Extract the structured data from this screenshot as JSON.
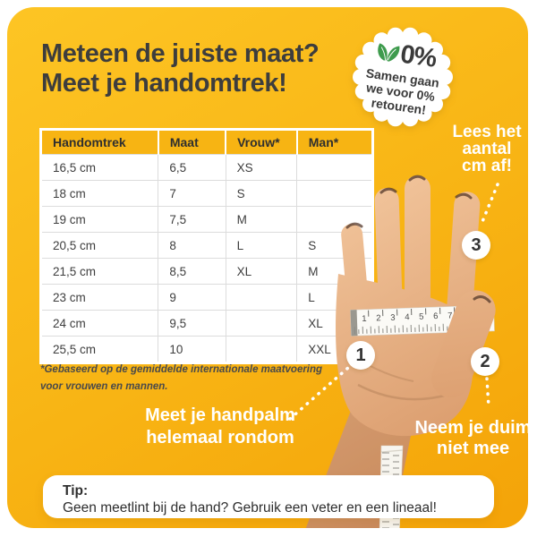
{
  "title": {
    "lines": [
      "Meteen de juiste maat?",
      "Meet je handomtrek!"
    ]
  },
  "badge": {
    "percent": "0%",
    "lines": [
      "Samen gaan",
      "we voor 0%",
      "retouren!"
    ],
    "leaf_icon": "sprout-leaves",
    "leaf_color": "#3E9B4D"
  },
  "table": {
    "headers": [
      "Handomtrek",
      "Maat",
      "Vrouw*",
      "Man*"
    ],
    "rows": [
      [
        "16,5 cm",
        "6,5",
        "XS",
        ""
      ],
      [
        "18 cm",
        "7",
        "S",
        ""
      ],
      [
        "19 cm",
        "7,5",
        "M",
        ""
      ],
      [
        "20,5 cm",
        "8",
        "L",
        "S"
      ],
      [
        "21,5 cm",
        "8,5",
        "XL",
        "M"
      ],
      [
        "23 cm",
        "9",
        "",
        "L"
      ],
      [
        "24 cm",
        "9,5",
        "",
        "XL"
      ],
      [
        "25,5 cm",
        "10",
        "",
        "XXL"
      ]
    ]
  },
  "footnote": {
    "lines": [
      "*Gebaseerd op de gemiddelde internationale maatvoering",
      "voor vrouwen en mannen."
    ]
  },
  "annotations": {
    "step1": {
      "number": "1",
      "lines": [
        "Meet je handpalm",
        "helemaal rondom"
      ]
    },
    "step2": {
      "number": "2",
      "lines": [
        "Neem je duim",
        "niet mee"
      ]
    },
    "step3": {
      "number": "3",
      "lines": [
        "Lees het",
        "aantal",
        "cm af!"
      ]
    }
  },
  "tape": {
    "numbers": [
      "1",
      "2",
      "3",
      "4",
      "5",
      "6",
      "7",
      "8",
      "9"
    ]
  },
  "tip": {
    "heading": "Tip:",
    "text": "Geen meetlint bij de hand? Gebruik een veter en een lineaal!"
  },
  "colors": {
    "card_yellow_top": "#FDC524",
    "card_yellow_bottom": "#F4A308",
    "table_header_yellow": "#F7B413",
    "text_dark": "#3D3D3D",
    "leaf_green": "#3E9B4D",
    "white": "#FFFFFF"
  }
}
